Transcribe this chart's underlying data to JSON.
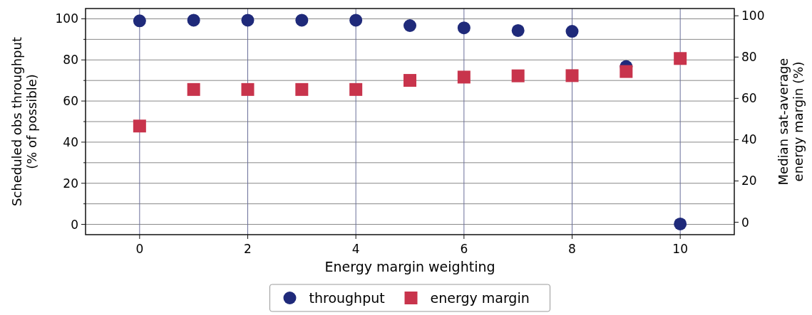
{
  "chart_data": {
    "type": "scatter",
    "x": [
      0,
      1,
      2,
      3,
      4,
      5,
      6,
      7,
      8,
      9,
      10
    ],
    "series": [
      {
        "name": "throughput",
        "color": "#1f2a7a",
        "marker": "circle",
        "values": [
          99,
          99.3,
          99.3,
          99.3,
          99.3,
          96.7,
          95.6,
          94.3,
          93.9,
          76.8,
          0.2
        ]
      },
      {
        "name": "energy margin",
        "color": "#c8344c",
        "marker": "square",
        "axis": "y2",
        "values": [
          46.6,
          64.3,
          64.3,
          64.3,
          64.3,
          68.7,
          70.3,
          70.9,
          71,
          73,
          79.3
        ]
      }
    ],
    "xlabel": "Energy margin weighting",
    "ylabel": "Scheduled obs throughput\n(% of possible)",
    "y2label": "Median sat-average\nenergy margin (%)",
    "xlim": [
      -1,
      11
    ],
    "xticks": [
      0,
      2,
      4,
      6,
      8,
      10
    ],
    "ylim": [
      -5,
      105
    ],
    "yticks": [
      0,
      {
        "value": 10,
        "label": null
      },
      20,
      {
        "value": 30,
        "label": null
      },
      40,
      {
        "value": 50,
        "label": null
      },
      60,
      {
        "value": 70,
        "label": null
      },
      80,
      {
        "value": 90,
        "label": null
      },
      100
    ],
    "y2lim": [
      -6,
      103.5
    ],
    "y2ticks": [
      0,
      20,
      40,
      60,
      80,
      100
    ],
    "grid": true,
    "legend": "bottom"
  }
}
